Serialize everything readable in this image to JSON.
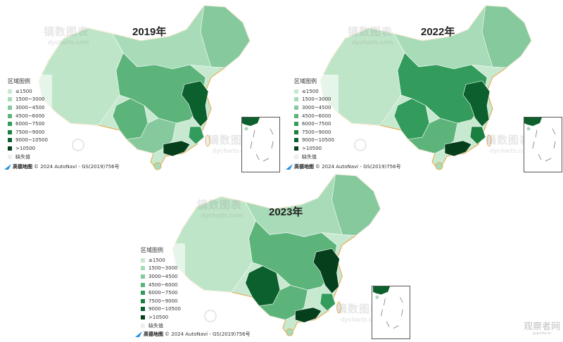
{
  "panels": [
    {
      "year": "2019年"
    },
    {
      "year": "2022年"
    },
    {
      "year": "2023年"
    }
  ],
  "legend": {
    "title": "区域图例",
    "items": [
      {
        "label": "≤1500",
        "color": "#c7e9d0"
      },
      {
        "label": "1500~3000",
        "color": "#a8dbb8"
      },
      {
        "label": "3000~4500",
        "color": "#85c99c"
      },
      {
        "label": "4500~6000",
        "color": "#5cb47b"
      },
      {
        "label": "6000~7500",
        "color": "#339b5b"
      },
      {
        "label": "7500~9000",
        "color": "#1b7f41"
      },
      {
        "label": "9000~10500",
        "color": "#0b602e"
      },
      {
        "label": ">10500",
        "color": "#053f1c"
      },
      {
        "label": "缺失值",
        "color": "#eeeeee"
      }
    ]
  },
  "credit": {
    "logo_text": "高德地图",
    "text": "© 2024 AutoNavi - GS(2019)756号"
  },
  "watermark": {
    "cn": "镝数图表",
    "en": "dycharts.com"
  },
  "site_mark": {
    "cn": "观察者网",
    "en": "guancha.cn"
  },
  "colors": {
    "border": "#ffffff",
    "coast": "#e8a33c",
    "inset_border": "#555555"
  }
}
